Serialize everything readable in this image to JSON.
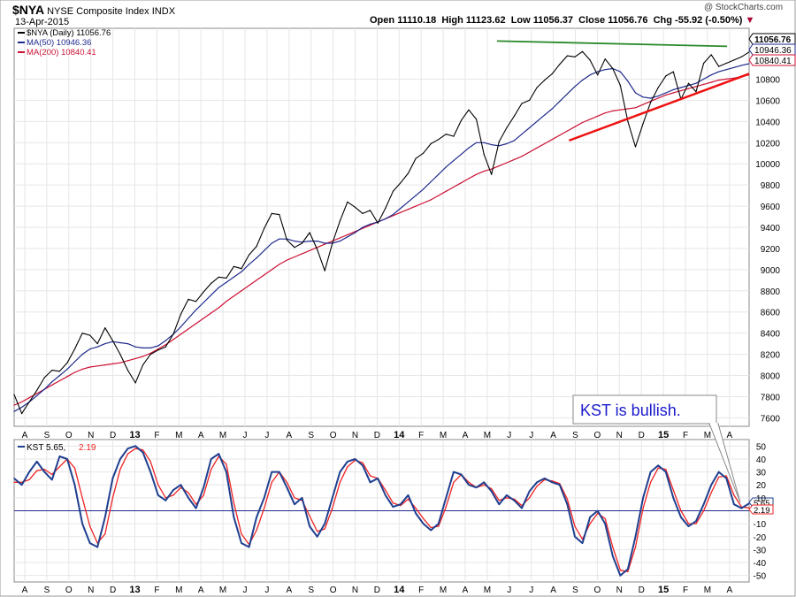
{
  "header": {
    "symbol": "$NYA",
    "name": "NYSE Composite Index",
    "type": "INDX",
    "date": "13-Apr-2015",
    "open_label": "Open",
    "open": "11110.18",
    "high_label": "High",
    "high": "11123.62",
    "low_label": "Low",
    "low": "11056.37",
    "close_label": "Close",
    "close": "11056.76",
    "chg_label": "Chg",
    "chg": "-55.92 (-0.50%)",
    "watermark": "@ StockCharts.com"
  },
  "colors": {
    "price": "#000000",
    "ma50": "#1f2a8c",
    "ma200": "#cc1133",
    "trend_top": "#2a8a2a",
    "trend_bottom": "#ee1111",
    "kst": "#1f3f8f",
    "kst_signal": "#ee2222",
    "down_arrow": "#aa0033"
  },
  "chart_data": [
    {
      "type": "line",
      "panel": "price",
      "legend": [
        {
          "label": "$NYA (Daily) 11056.76",
          "color": "#000000"
        },
        {
          "label": "MA(50) 10946.36",
          "color": "#1f2a8c"
        },
        {
          "label": "MA(200) 10840.41",
          "color": "#cc1133"
        }
      ],
      "y_ticks": [
        7600,
        7800,
        8000,
        8200,
        8400,
        8600,
        8800,
        9000,
        9200,
        9400,
        9600,
        9800,
        10000,
        10200,
        10400,
        10600,
        10800
      ],
      "ylim": [
        7520,
        11280
      ],
      "x_labels": [
        "A",
        "S",
        "O",
        "N",
        "D",
        "13",
        "F",
        "M",
        "A",
        "M",
        "J",
        "J",
        "A",
        "S",
        "O",
        "N",
        "D",
        "14",
        "F",
        "M",
        "A",
        "M",
        "J",
        "J",
        "A",
        "S",
        "O",
        "N",
        "D",
        "15",
        "F",
        "M",
        "A"
      ],
      "value_tags": [
        {
          "value": 11056.76,
          "label": "11056.76",
          "style": "dark"
        },
        {
          "value": 10946.36,
          "label": "10946.36",
          "style": "blue"
        },
        {
          "value": 10840.41,
          "label": "10840.41",
          "style": "red"
        }
      ],
      "series": [
        {
          "name": "$NYA (Daily)",
          "key": "price",
          "values": [
            7820,
            7640,
            7750,
            7860,
            7980,
            8050,
            8040,
            8120,
            8250,
            8400,
            8380,
            8300,
            8450,
            8330,
            8200,
            8050,
            7930,
            8100,
            8200,
            8240,
            8270,
            8390,
            8580,
            8720,
            8700,
            8790,
            8870,
            8930,
            8920,
            9030,
            9010,
            9140,
            9220,
            9390,
            9530,
            9520,
            9280,
            9210,
            9250,
            9350,
            9190,
            8990,
            9250,
            9460,
            9640,
            9590,
            9530,
            9560,
            9440,
            9580,
            9740,
            9820,
            9910,
            10050,
            10100,
            10190,
            10230,
            10280,
            10260,
            10410,
            10510,
            10420,
            10090,
            9900,
            10210,
            10340,
            10450,
            10570,
            10600,
            10720,
            10790,
            10850,
            10940,
            11020,
            11010,
            11060,
            10980,
            10840,
            10990,
            10900,
            10740,
            10400,
            10160,
            10380,
            10580,
            10720,
            10830,
            10870,
            10610,
            10760,
            10680,
            10950,
            11030,
            10920,
            10950,
            10980,
            11010,
            11056
          ]
        },
        {
          "name": "MA(50)",
          "key": "ma50",
          "values": [
            7660,
            7700,
            7750,
            7810,
            7870,
            7940,
            8000,
            8060,
            8130,
            8200,
            8250,
            8270,
            8300,
            8320,
            8310,
            8300,
            8270,
            8260,
            8260,
            8280,
            8330,
            8390,
            8460,
            8540,
            8620,
            8690,
            8760,
            8830,
            8880,
            8930,
            8980,
            9050,
            9110,
            9180,
            9250,
            9290,
            9290,
            9270,
            9260,
            9270,
            9270,
            9250,
            9250,
            9270,
            9310,
            9350,
            9400,
            9430,
            9450,
            9480,
            9520,
            9580,
            9640,
            9700,
            9760,
            9830,
            9900,
            9970,
            10030,
            10090,
            10150,
            10200,
            10200,
            10180,
            10170,
            10190,
            10220,
            10280,
            10340,
            10400,
            10460,
            10520,
            10590,
            10660,
            10730,
            10790,
            10840,
            10870,
            10890,
            10900,
            10870,
            10780,
            10670,
            10630,
            10620,
            10640,
            10670,
            10700,
            10720,
            10740,
            10760,
            10800,
            10840,
            10870,
            10890,
            10910,
            10930,
            10946
          ]
        },
        {
          "name": "MA(200)",
          "key": "ma200",
          "values": [
            7720,
            7750,
            7790,
            7830,
            7870,
            7910,
            7950,
            7990,
            8030,
            8060,
            8080,
            8090,
            8100,
            8110,
            8120,
            8140,
            8160,
            8180,
            8210,
            8250,
            8290,
            8340,
            8390,
            8440,
            8490,
            8540,
            8590,
            8640,
            8700,
            8750,
            8800,
            8850,
            8900,
            8950,
            9000,
            9050,
            9090,
            9120,
            9150,
            9180,
            9210,
            9240,
            9270,
            9300,
            9330,
            9360,
            9390,
            9420,
            9450,
            9480,
            9510,
            9540,
            9570,
            9600,
            9630,
            9660,
            9700,
            9740,
            9780,
            9820,
            9860,
            9900,
            9930,
            9950,
            9980,
            10010,
            10040,
            10070,
            10110,
            10150,
            10190,
            10230,
            10270,
            10310,
            10350,
            10390,
            10420,
            10450,
            10480,
            10500,
            10510,
            10520,
            10530,
            10560,
            10590,
            10620,
            10650,
            10670,
            10690,
            10710,
            10730,
            10750,
            10770,
            10790,
            10800,
            10810,
            10825,
            10840
          ]
        }
      ],
      "annotations": [
        {
          "type": "trendline",
          "color": "#2a8a2a",
          "from": [
            0.657,
            11160
          ],
          "to": [
            0.97,
            11110
          ]
        },
        {
          "type": "trendline",
          "color": "#ee1111",
          "from": [
            0.755,
            10220
          ],
          "to": [
            1.0,
            10850
          ]
        }
      ]
    },
    {
      "type": "line",
      "panel": "kst",
      "legend": [
        {
          "label": "KST 5.65,",
          "color": "#000000"
        },
        {
          "label": "2.19",
          "color": "#ee2222"
        }
      ],
      "y_ticks": [
        50,
        40,
        30,
        20,
        10,
        -10,
        -20,
        -30,
        -40,
        -50
      ],
      "ylim": [
        -55,
        55
      ],
      "zero_line": 0,
      "x_labels": [
        "A",
        "S",
        "O",
        "N",
        "D",
        "13",
        "F",
        "M",
        "A",
        "M",
        "J",
        "J",
        "A",
        "S",
        "O",
        "N",
        "D",
        "14",
        "F",
        "M",
        "A",
        "M",
        "J",
        "J",
        "A",
        "S",
        "O",
        "N",
        "D",
        "15",
        "F",
        "M",
        "A"
      ],
      "value_tags": [
        {
          "value": 5.65,
          "label": "5.65",
          "style": "kst"
        },
        {
          "value": 2.19,
          "label": "2.19",
          "style": "signal"
        }
      ],
      "series": [
        {
          "name": "KST",
          "key": "kst",
          "values": [
            25,
            20,
            30,
            38,
            30,
            24,
            42,
            40,
            20,
            -10,
            -25,
            -28,
            -5,
            25,
            40,
            48,
            50,
            45,
            30,
            12,
            8,
            16,
            20,
            10,
            2,
            18,
            40,
            44,
            30,
            -5,
            -25,
            -28,
            -5,
            10,
            30,
            30,
            18,
            5,
            10,
            -12,
            -20,
            -10,
            10,
            30,
            38,
            40,
            35,
            22,
            25,
            12,
            3,
            5,
            12,
            -2,
            -10,
            -15,
            -10,
            10,
            30,
            28,
            20,
            18,
            22,
            15,
            5,
            12,
            8,
            2,
            15,
            22,
            25,
            22,
            20,
            5,
            -20,
            -25,
            -5,
            0,
            -10,
            -35,
            -50,
            -45,
            -20,
            10,
            30,
            35,
            30,
            10,
            -5,
            -12,
            -8,
            5,
            20,
            30,
            25,
            5,
            2,
            5.65
          ]
        },
        {
          "name": "Signal",
          "key": "signal",
          "values": [
            22,
            22,
            24,
            31,
            32,
            28,
            34,
            40,
            33,
            10,
            -12,
            -25,
            -18,
            10,
            32,
            44,
            48,
            47,
            38,
            20,
            10,
            12,
            18,
            14,
            5,
            12,
            32,
            42,
            36,
            6,
            -18,
            -26,
            -15,
            2,
            22,
            30,
            22,
            10,
            8,
            -4,
            -16,
            -14,
            2,
            22,
            34,
            39,
            37,
            27,
            25,
            16,
            6,
            4,
            9,
            2,
            -6,
            -13,
            -12,
            3,
            22,
            28,
            22,
            18,
            20,
            17,
            8,
            10,
            9,
            4,
            10,
            19,
            24,
            23,
            21,
            9,
            -12,
            -22,
            -10,
            -2,
            -6,
            -28,
            -46,
            -47,
            -28,
            2,
            22,
            33,
            32,
            16,
            0,
            -10,
            -10,
            0,
            14,
            26,
            27,
            12,
            3,
            2.19
          ]
        }
      ],
      "annotations": [
        {
          "type": "callout",
          "text": "KST is bullish.",
          "color": "#1a1acc",
          "points_to_value": 5.65
        }
      ]
    }
  ]
}
